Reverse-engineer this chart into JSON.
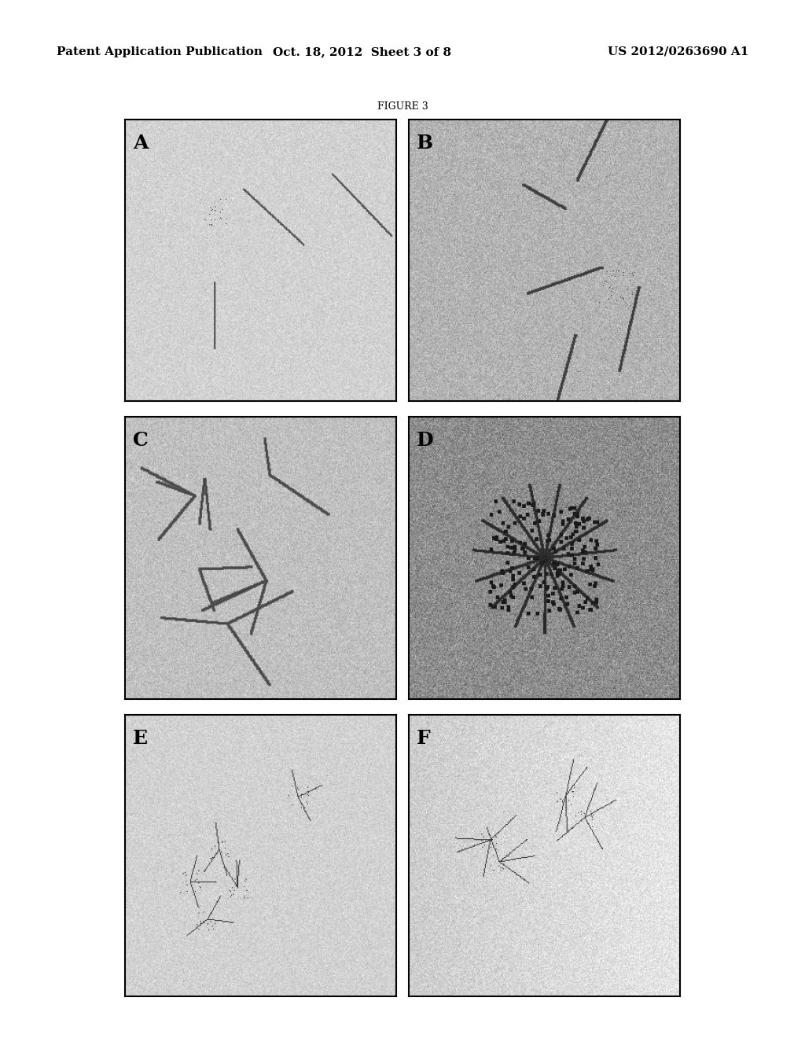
{
  "header_left": "Patent Application Publication",
  "header_center": "Oct. 18, 2012  Sheet 3 of 8",
  "header_right": "US 2012/0263690 A1",
  "figure_label": "FIGURE 3",
  "panel_labels": [
    "A",
    "B",
    "C",
    "D",
    "E",
    "F"
  ],
  "background_color": "#ffffff",
  "header_font_size": 11,
  "figure_label_font_size": 9,
  "panel_label_font_size": 18,
  "grid_rows": 3,
  "grid_cols": 2,
  "page_width": 10.24,
  "page_height": 13.2,
  "panel_border_color": "#000000",
  "panel_bg_colors": [
    "#c8c8c8",
    "#b8b8b8",
    "#c0c0c0",
    "#909090",
    "#c8c8c8",
    "#c0c0c0"
  ]
}
